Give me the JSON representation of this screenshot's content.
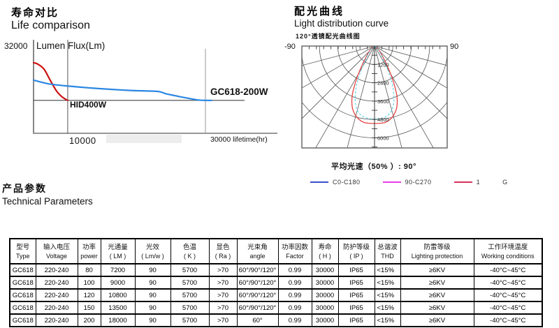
{
  "sections": {
    "life": {
      "title_cn": "寿命对比",
      "title_en": "Life comparison"
    },
    "distribution": {
      "title_cn": "配光曲线",
      "title_en": "Light distribution curve",
      "subtitle": "120°透镜配光曲线图",
      "note": "平均光速（50% ）: 90°"
    },
    "params": {
      "title_cn": "产品参数",
      "title_en": "Technical Parameters"
    }
  },
  "chart_data": [
    {
      "id": "life_comparison",
      "type": "line",
      "title": "Life comparison",
      "ylabel": "Lumen Flux(Lm)",
      "y_max_tick": "32000",
      "ylim": [
        0,
        32000
      ],
      "xlabel": "lifetime(hr)",
      "x_ticks": [
        {
          "label": "10000",
          "frac": 0.163
        },
        {
          "label": "30000 lifetime(hr)",
          "frac": 0.82
        }
      ],
      "threshold_lumen": 11700,
      "grid": false,
      "series": [
        {
          "name": "HID400W",
          "color": "#cc1212",
          "points": [
            [
              0,
              25100
            ],
            [
              0.02,
              24600
            ],
            [
              0.05,
              22800
            ],
            [
              0.08,
              18800
            ],
            [
              0.11,
              15000
            ],
            [
              0.135,
              13000
            ],
            [
              0.155,
              12000
            ],
            [
              0.163,
              11700
            ]
          ]
        },
        {
          "name": "GC618-200W",
          "color": "#2b87e3",
          "points": [
            [
              0,
              18900
            ],
            [
              0.07,
              17600
            ],
            [
              0.163,
              16800
            ],
            [
              0.31,
              15900
            ],
            [
              0.47,
              15200
            ],
            [
              0.59,
              14900
            ],
            [
              0.635,
              14000
            ],
            [
              0.72,
              12700
            ],
            [
              0.78,
              11900
            ],
            [
              0.82,
              11700
            ],
            [
              0.85,
              11700
            ]
          ]
        }
      ]
    },
    {
      "id": "light_distribution",
      "type": "polar",
      "angle_min": -90,
      "angle_max": 90,
      "angle_labels": [
        "-90",
        "90"
      ],
      "radial_ticks": [
        1200,
        2400,
        3600,
        4800,
        6000
      ],
      "radial_line_step_deg": 15,
      "top_tick_step_deg": 10,
      "curves": [
        {
          "name": "beam-solid",
          "color": "#e54545",
          "style": "solid",
          "points": [
            [
              0,
              5060
            ],
            [
              4,
              5060
            ],
            [
              8,
              5040
            ],
            [
              12,
              4900
            ],
            [
              16,
              4650
            ],
            [
              20,
              4250
            ],
            [
              24,
              3600
            ],
            [
              27,
              2850
            ],
            [
              30,
              2100
            ],
            [
              34,
              1350
            ],
            [
              38,
              850
            ],
            [
              44,
              500
            ],
            [
              52,
              260
            ],
            [
              62,
              110
            ],
            [
              75,
              0
            ]
          ]
        },
        {
          "name": "beam-dashed",
          "color": "#66d9ec",
          "style": "dashed",
          "points": [
            [
              0,
              4760
            ],
            [
              4,
              4750
            ],
            [
              8,
              4700
            ],
            [
              12,
              4550
            ],
            [
              16,
              4250
            ],
            [
              20,
              3700
            ],
            [
              24,
              2950
            ],
            [
              27,
              2250
            ],
            [
              30,
              1600
            ],
            [
              34,
              1000
            ],
            [
              38,
              620
            ],
            [
              44,
              350
            ],
            [
              52,
              170
            ],
            [
              62,
              70
            ],
            [
              75,
              0
            ]
          ]
        }
      ],
      "legend": [
        {
          "label": "C0-C180",
          "color": "#3c50c8"
        },
        {
          "label": "90-C270",
          "color": "#e83ce8"
        },
        {
          "label": "1",
          "color": "#d8305c"
        },
        {
          "label": "G",
          "color": ""
        }
      ]
    }
  ],
  "table": {
    "columns": [
      {
        "cn": "型号",
        "en": "Type"
      },
      {
        "cn": "输入电压",
        "en": "Voltage"
      },
      {
        "cn": "功率",
        "en": "power"
      },
      {
        "cn": "光通量",
        "en": "( LM )"
      },
      {
        "cn": "光效",
        "en": "( Lm/w )"
      },
      {
        "cn": "色温",
        "en": "( K )"
      },
      {
        "cn": "显色",
        "en": "( Ra )"
      },
      {
        "cn": "光束角",
        "en": "angle"
      },
      {
        "cn": "功率因数",
        "en": "Factor"
      },
      {
        "cn": "寿命",
        "en": "( H )"
      },
      {
        "cn": "防护等级",
        "en": "( IP )"
      },
      {
        "cn": "总谐波",
        "en": "THD"
      },
      {
        "cn": "防雷等级",
        "en": "Lighting protection"
      },
      {
        "cn": "工作环境温度",
        "en": "Working conditions"
      }
    ],
    "rows": [
      [
        "GC618",
        "220-240",
        "80",
        "7200",
        "90",
        "5700",
        ">70",
        "60°/90°/120°",
        "0.99",
        "30000",
        "IP65",
        "<15%",
        "≥6KV",
        "-40°C~45°C"
      ],
      [
        "GC618",
        "220-240",
        "100",
        "9000",
        "90",
        "5700",
        ">70",
        "60°/90°/120°",
        "0.99",
        "30000",
        "IP65",
        "<15%",
        "≥6KV",
        "-40°C~45°C"
      ],
      [
        "GC618",
        "220-240",
        "120",
        "10800",
        "90",
        "5700",
        ">70",
        "60°/90°/120°",
        "0.99",
        "30000",
        "IP65",
        "<15%",
        "≥6KV",
        "-40°C~45°C"
      ],
      [
        "GC618",
        "220-240",
        "150",
        "13500",
        "90",
        "5700",
        ">70",
        "60°/90°/120°",
        "0.99",
        "30000",
        "IP65",
        "<15%",
        "≥6KV",
        "-40°C~45°C"
      ],
      [
        "GC618",
        "220-240",
        "200",
        "18000",
        "90",
        "5700",
        ">70",
        "60°",
        "0.99",
        "30000",
        "IP65",
        "<15%",
        "≥6KV",
        "-40°C~45°C"
      ]
    ]
  }
}
